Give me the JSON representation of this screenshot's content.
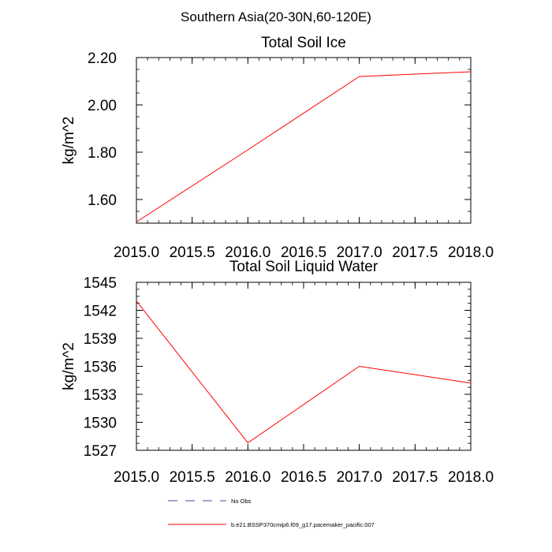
{
  "figure_title": "Southern Asia(20-30N,60-120E)",
  "colors": {
    "model_line": "#ff0000",
    "obs_line": "#4444aa",
    "axis": "#000000"
  },
  "legend": {
    "entries": [
      {
        "label": "No Obs",
        "style": "dashed",
        "color": "#4444aa"
      },
      {
        "label": "b.e21.BSSP370cmip6.f09_g17.pacemaker_pacific.007",
        "style": "solid",
        "color": "#ff0000"
      }
    ]
  },
  "chart_data": [
    {
      "type": "line",
      "title": "Total Soil Ice",
      "xlabel": "",
      "ylabel": "kg/m^2",
      "xlim": [
        2015.0,
        2018.0
      ],
      "ylim": [
        1.5,
        2.2
      ],
      "x_ticks": [
        2015.0,
        2015.5,
        2016.0,
        2016.5,
        2017.0,
        2017.5,
        2018.0
      ],
      "x_tick_labels": [
        "2015.0",
        "2015.5",
        "2016.0",
        "2016.5",
        "2017.0",
        "2017.5",
        "2018.0"
      ],
      "y_ticks": [
        1.6,
        1.8,
        2.0,
        2.2
      ],
      "y_tick_labels": [
        "1.60",
        "1.80",
        "2.00",
        "2.20"
      ],
      "series": [
        {
          "name": "b.e21.BSSP370cmip6.f09_g17.pacemaker_pacific.007",
          "x": [
            2015,
            2016,
            2017,
            2018
          ],
          "y": [
            1.505,
            1.81,
            2.12,
            2.14
          ]
        }
      ]
    },
    {
      "type": "line",
      "title": "Total Soil Liquid Water",
      "xlabel": "",
      "ylabel": "kg/m^2",
      "xlim": [
        2015.0,
        2018.0
      ],
      "ylim": [
        1527,
        1545
      ],
      "x_ticks": [
        2015.0,
        2015.5,
        2016.0,
        2016.5,
        2017.0,
        2017.5,
        2018.0
      ],
      "x_tick_labels": [
        "2015.0",
        "2015.5",
        "2016.0",
        "2016.5",
        "2017.0",
        "2017.5",
        "2018.0"
      ],
      "y_ticks": [
        1527,
        1530,
        1533,
        1536,
        1539,
        1542,
        1545
      ],
      "y_tick_labels": [
        "1527",
        "1530",
        "1533",
        "1536",
        "1539",
        "1542",
        "1545"
      ],
      "series": [
        {
          "name": "b.e21.BSSP370cmip6.f09_g17.pacemaker_pacific.007",
          "x": [
            2015,
            2016,
            2017,
            2018
          ],
          "y": [
            1543.0,
            1527.8,
            1536.0,
            1534.2
          ]
        }
      ]
    }
  ]
}
